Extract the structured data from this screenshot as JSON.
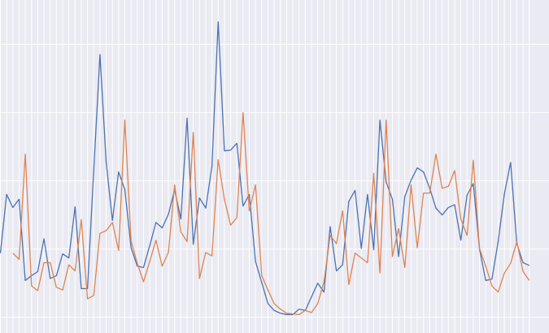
{
  "chart_data": {
    "type": "line",
    "categories": [
      null,
      null,
      null,
      null,
      null,
      null,
      null,
      null,
      null,
      null,
      null,
      null,
      null,
      null,
      null,
      null,
      null,
      null,
      null,
      null,
      null,
      null,
      null,
      null,
      null,
      null,
      null,
      null,
      null,
      null,
      null,
      null,
      null,
      null,
      null,
      null,
      null,
      null,
      null,
      null,
      null,
      null,
      null,
      null,
      null,
      null,
      null,
      null,
      null,
      null,
      null,
      null,
      null,
      null,
      null,
      null,
      null,
      null,
      null,
      null,
      null,
      null,
      null,
      null,
      null,
      null,
      null,
      null,
      null,
      null,
      null,
      null,
      null,
      null,
      null,
      null,
      null,
      null,
      null,
      null,
      null,
      null,
      null,
      null,
      null,
      null
    ],
    "series": [
      {
        "color": "#4c72b0",
        "values": [
          0.94,
          1.8,
          1.61,
          1.73,
          0.54,
          0.61,
          0.67,
          1.15,
          0.57,
          0.61,
          0.93,
          0.87,
          1.62,
          0.42,
          0.42,
          2.15,
          3.85,
          2.27,
          1.42,
          2.13,
          1.87,
          1.02,
          0.75,
          0.73,
          1.05,
          1.39,
          1.31,
          1.51,
          1.87,
          1.44,
          2.92,
          1.07,
          1.75,
          1.6,
          2.21,
          4.33,
          2.44,
          2.45,
          2.55,
          1.63,
          1.8,
          0.82,
          0.51,
          0.2,
          0.1,
          0.06,
          0.04,
          0.04,
          0.12,
          0.1,
          0.3,
          0.5,
          0.37,
          1.33,
          0.68,
          0.77,
          1.7,
          1.86,
          1.01,
          1.8,
          0.99,
          2.89,
          1.98,
          1.73,
          0.89,
          1.77,
          2.01,
          2.19,
          2.13,
          1.89,
          1.6,
          1.5,
          1.61,
          1.65,
          1.13,
          1.79,
          1.96,
          1.0,
          0.54,
          0.56,
          1.11,
          1.81,
          2.27,
          1.08,
          0.8,
          0.76
        ]
      },
      {
        "color": "#dd8452",
        "values": [
          null,
          null,
          0.94,
          0.85,
          2.39,
          0.46,
          0.39,
          0.8,
          0.8,
          0.44,
          0.4,
          0.77,
          0.68,
          1.43,
          0.27,
          0.32,
          1.23,
          1.27,
          1.39,
          0.98,
          2.89,
          1.12,
          0.79,
          0.52,
          0.82,
          1.13,
          0.75,
          0.95,
          1.94,
          1.25,
          1.11,
          2.71,
          0.57,
          0.95,
          0.9,
          2.31,
          1.73,
          1.35,
          1.46,
          3.0,
          1.56,
          1.94,
          0.61,
          0.4,
          0.2,
          0.12,
          0.06,
          0.05,
          0.04,
          0.1,
          0.07,
          0.2,
          0.52,
          1.2,
          1.08,
          1.56,
          0.48,
          0.94,
          0.87,
          0.8,
          2.11,
          0.65,
          2.89,
          0.89,
          1.3,
          0.73,
          1.94,
          1.02,
          1.82,
          1.82,
          2.39,
          1.89,
          1.92,
          2.15,
          1.44,
          1.2,
          2.3,
          1.01,
          0.75,
          0.46,
          0.37,
          0.65,
          0.79,
          1.11,
          0.67,
          0.54
        ]
      }
    ],
    "ylim": [
      -0.23,
      4.65
    ],
    "yticks": [
      0,
      1,
      2,
      3,
      4
    ],
    "grid": true
  }
}
